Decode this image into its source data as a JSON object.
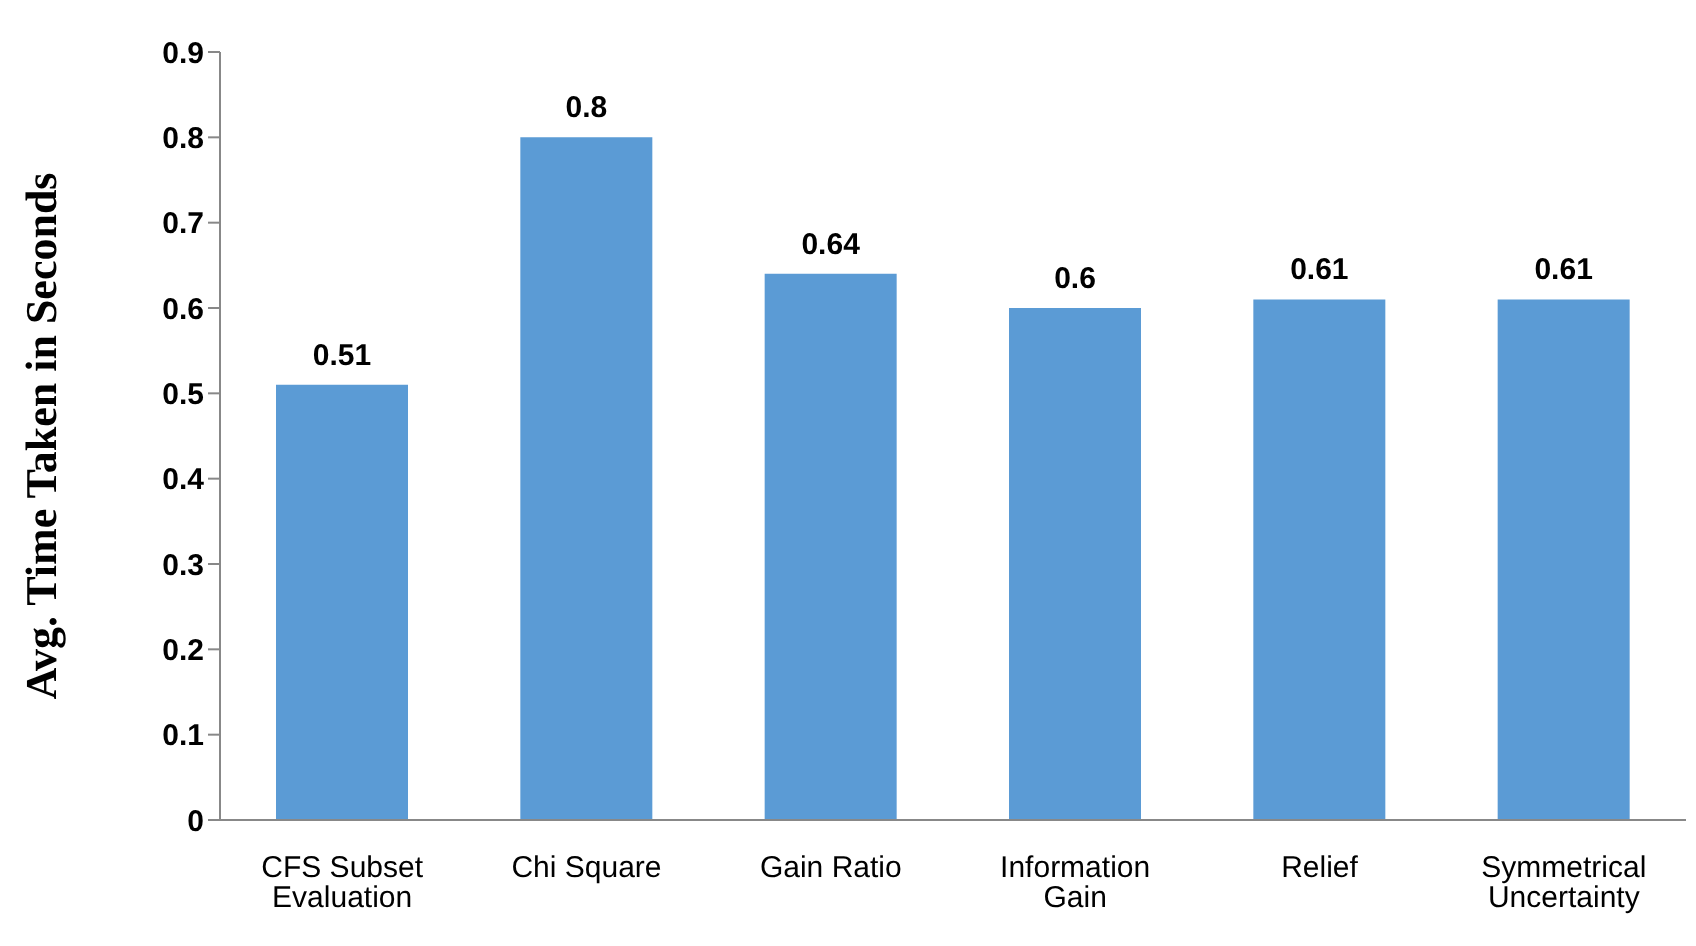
{
  "chart_data": {
    "type": "bar",
    "ylabel": "Avg. Time Taken in Seconds",
    "categories": [
      "CFS Subset Evaluation",
      "Chi Square",
      "Gain Ratio",
      "Information Gain",
      "Relief",
      "Symmetrical Uncertainty"
    ],
    "values": [
      0.51,
      0.8,
      0.64,
      0.6,
      0.61,
      0.61
    ],
    "color": "#5b9bd5",
    "ylim": [
      0,
      0.9
    ],
    "yticks": [
      0,
      0.1,
      0.2,
      0.3,
      0.4,
      0.5,
      0.6,
      0.7,
      0.8,
      0.9
    ],
    "grid": false,
    "legend": false,
    "data_labels": true
  }
}
